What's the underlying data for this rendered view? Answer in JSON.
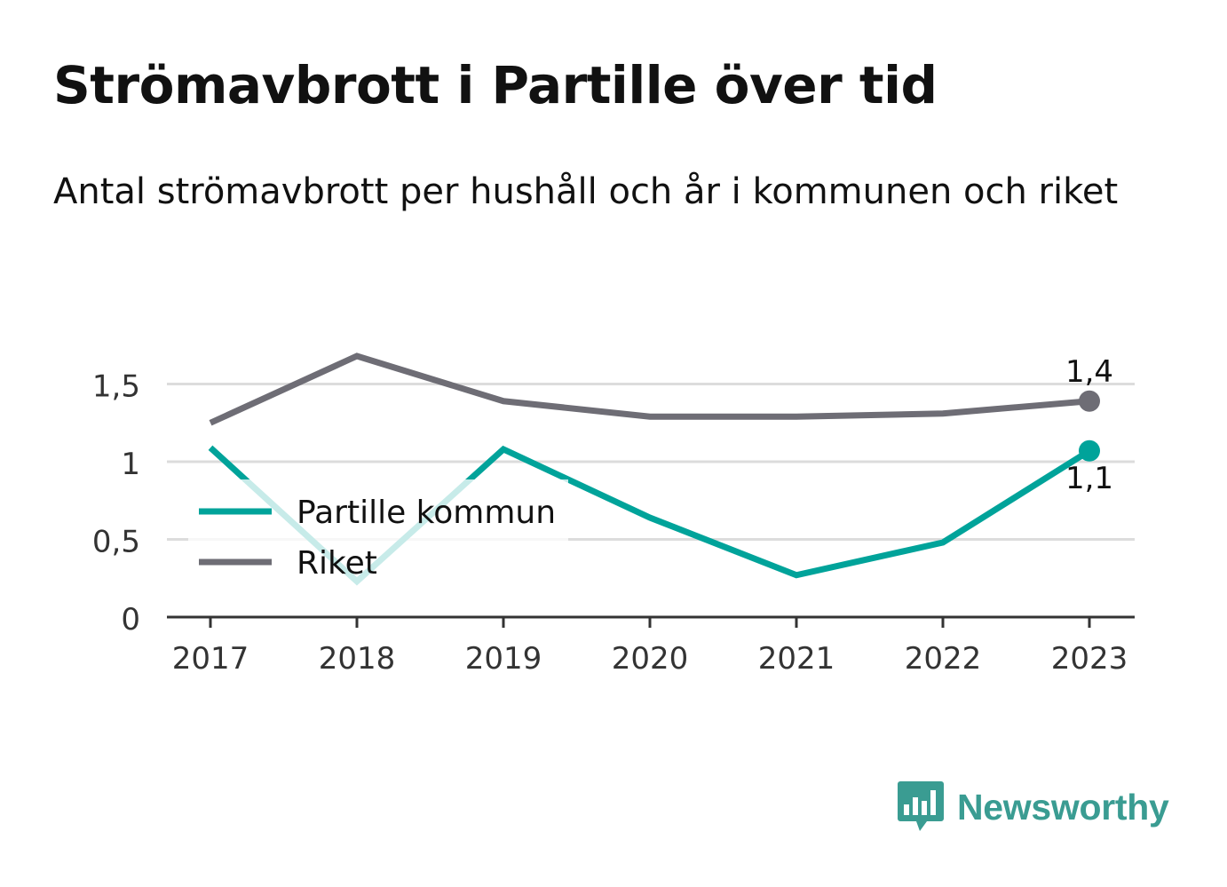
{
  "chart_data": {
    "type": "line",
    "title": "Strömavbrott i Partille över tid",
    "subtitle": "Antal strömavbrott per hushåll och år i kommunen och riket",
    "x": [
      "2017",
      "2018",
      "2019",
      "2020",
      "2021",
      "2022",
      "2023"
    ],
    "series": [
      {
        "name": "Partille kommun",
        "color": "#00a39a",
        "values": [
          1.09,
          0.23,
          1.08,
          0.64,
          0.27,
          0.48,
          1.07
        ],
        "end_label": "1,1"
      },
      {
        "name": "Riket",
        "color": "#6e6d75",
        "values": [
          1.25,
          1.68,
          1.39,
          1.29,
          1.29,
          1.31,
          1.39
        ],
        "end_label": "1,4"
      }
    ],
    "y_ticks": [
      0,
      0.5,
      1,
      1.5
    ],
    "y_tick_labels": [
      "0",
      "0,5",
      "1",
      "1,5"
    ],
    "ylim": [
      0,
      1.8
    ],
    "grid": true,
    "legend_position": "inside-left"
  },
  "branding": {
    "logo_text": "Newsworthy",
    "logo_icon": "bar-chart-speech-bubble-icon",
    "logo_color": "#3a9c92"
  }
}
